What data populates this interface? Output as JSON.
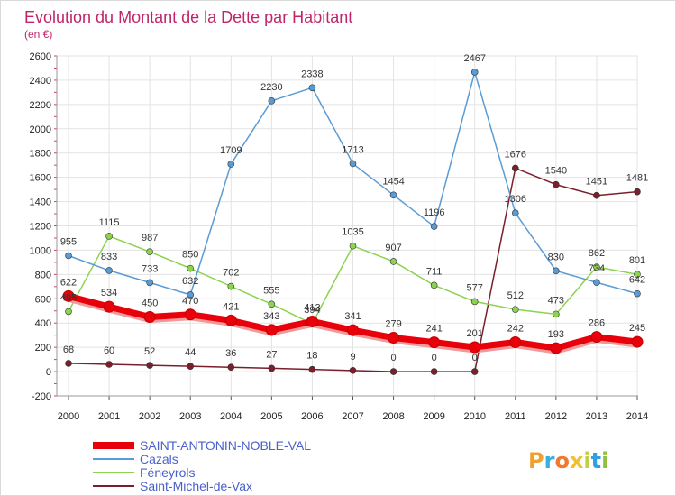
{
  "chart_data": {
    "type": "line",
    "title": "Evolution du Montant de la Dette par Habitant",
    "subtitle": "(en €)",
    "x": [
      "2000",
      "2001",
      "2002",
      "2003",
      "2004",
      "2005",
      "2006",
      "2007",
      "2008",
      "2009",
      "2010",
      "2011",
      "2012",
      "2013",
      "2014"
    ],
    "yticks": [
      "-200",
      "0",
      "200",
      "400",
      "600",
      "800",
      "1000",
      "1200",
      "1400",
      "1600",
      "1800",
      "2000",
      "2200",
      "2400",
      "2600"
    ],
    "ylim": [
      -200,
      2600
    ],
    "grid": true,
    "legend_position": "bottom-left",
    "series": [
      {
        "name": "SAINT-ANTONIN-NOBLE-VAL",
        "color": "#e8000b",
        "values": [
          622,
          534,
          450,
          470,
          421,
          343,
          413,
          341,
          279,
          241,
          201,
          242,
          193,
          286,
          245
        ],
        "labels": [
          "622",
          "534",
          "450",
          "470",
          "421",
          "343",
          "413",
          "341",
          "279",
          "241",
          "201",
          "242",
          "193",
          "286",
          "245"
        ]
      },
      {
        "name": "Cazals",
        "color": "#5b9bd5",
        "values": [
          955,
          833,
          733,
          632,
          1709,
          2230,
          2338,
          1713,
          1454,
          1196,
          2467,
          1306,
          830,
          734,
          642
        ],
        "labels": [
          "955",
          "833",
          "733",
          "632",
          "1709",
          "2230",
          "2338",
          "1713",
          "1454",
          "1196",
          "2467",
          "1306",
          "830",
          "734",
          "642"
        ]
      },
      {
        "name": "Féneyrols",
        "color": "#8cd34f",
        "values": [
          495,
          1115,
          987,
          850,
          702,
          555,
          394,
          1035,
          907,
          711,
          577,
          512,
          473,
          862,
          801
        ],
        "labels": [
          "495",
          "1115",
          "987",
          "850",
          "702",
          "555",
          "394",
          "1035",
          "907",
          "711",
          "577",
          "512",
          "473",
          "862",
          "801"
        ]
      },
      {
        "name": "Saint-Michel-de-Vax",
        "color": "#7a1f2b",
        "values": [
          68,
          60,
          52,
          44,
          36,
          27,
          18,
          9,
          0,
          0,
          0,
          1676,
          1540,
          1451,
          1481
        ],
        "labels": [
          "68",
          "60",
          "52",
          "44",
          "36",
          "27",
          "18",
          "9",
          "0",
          "0",
          "0",
          "1676",
          "1540",
          "1451",
          "1481"
        ]
      }
    ]
  },
  "brand": {
    "text": "Proxiti",
    "colors": [
      "#f0a030",
      "#35b0e0",
      "#f07830",
      "#f0c030",
      "#c0d040",
      "#30a0e0",
      "#90c040"
    ]
  }
}
